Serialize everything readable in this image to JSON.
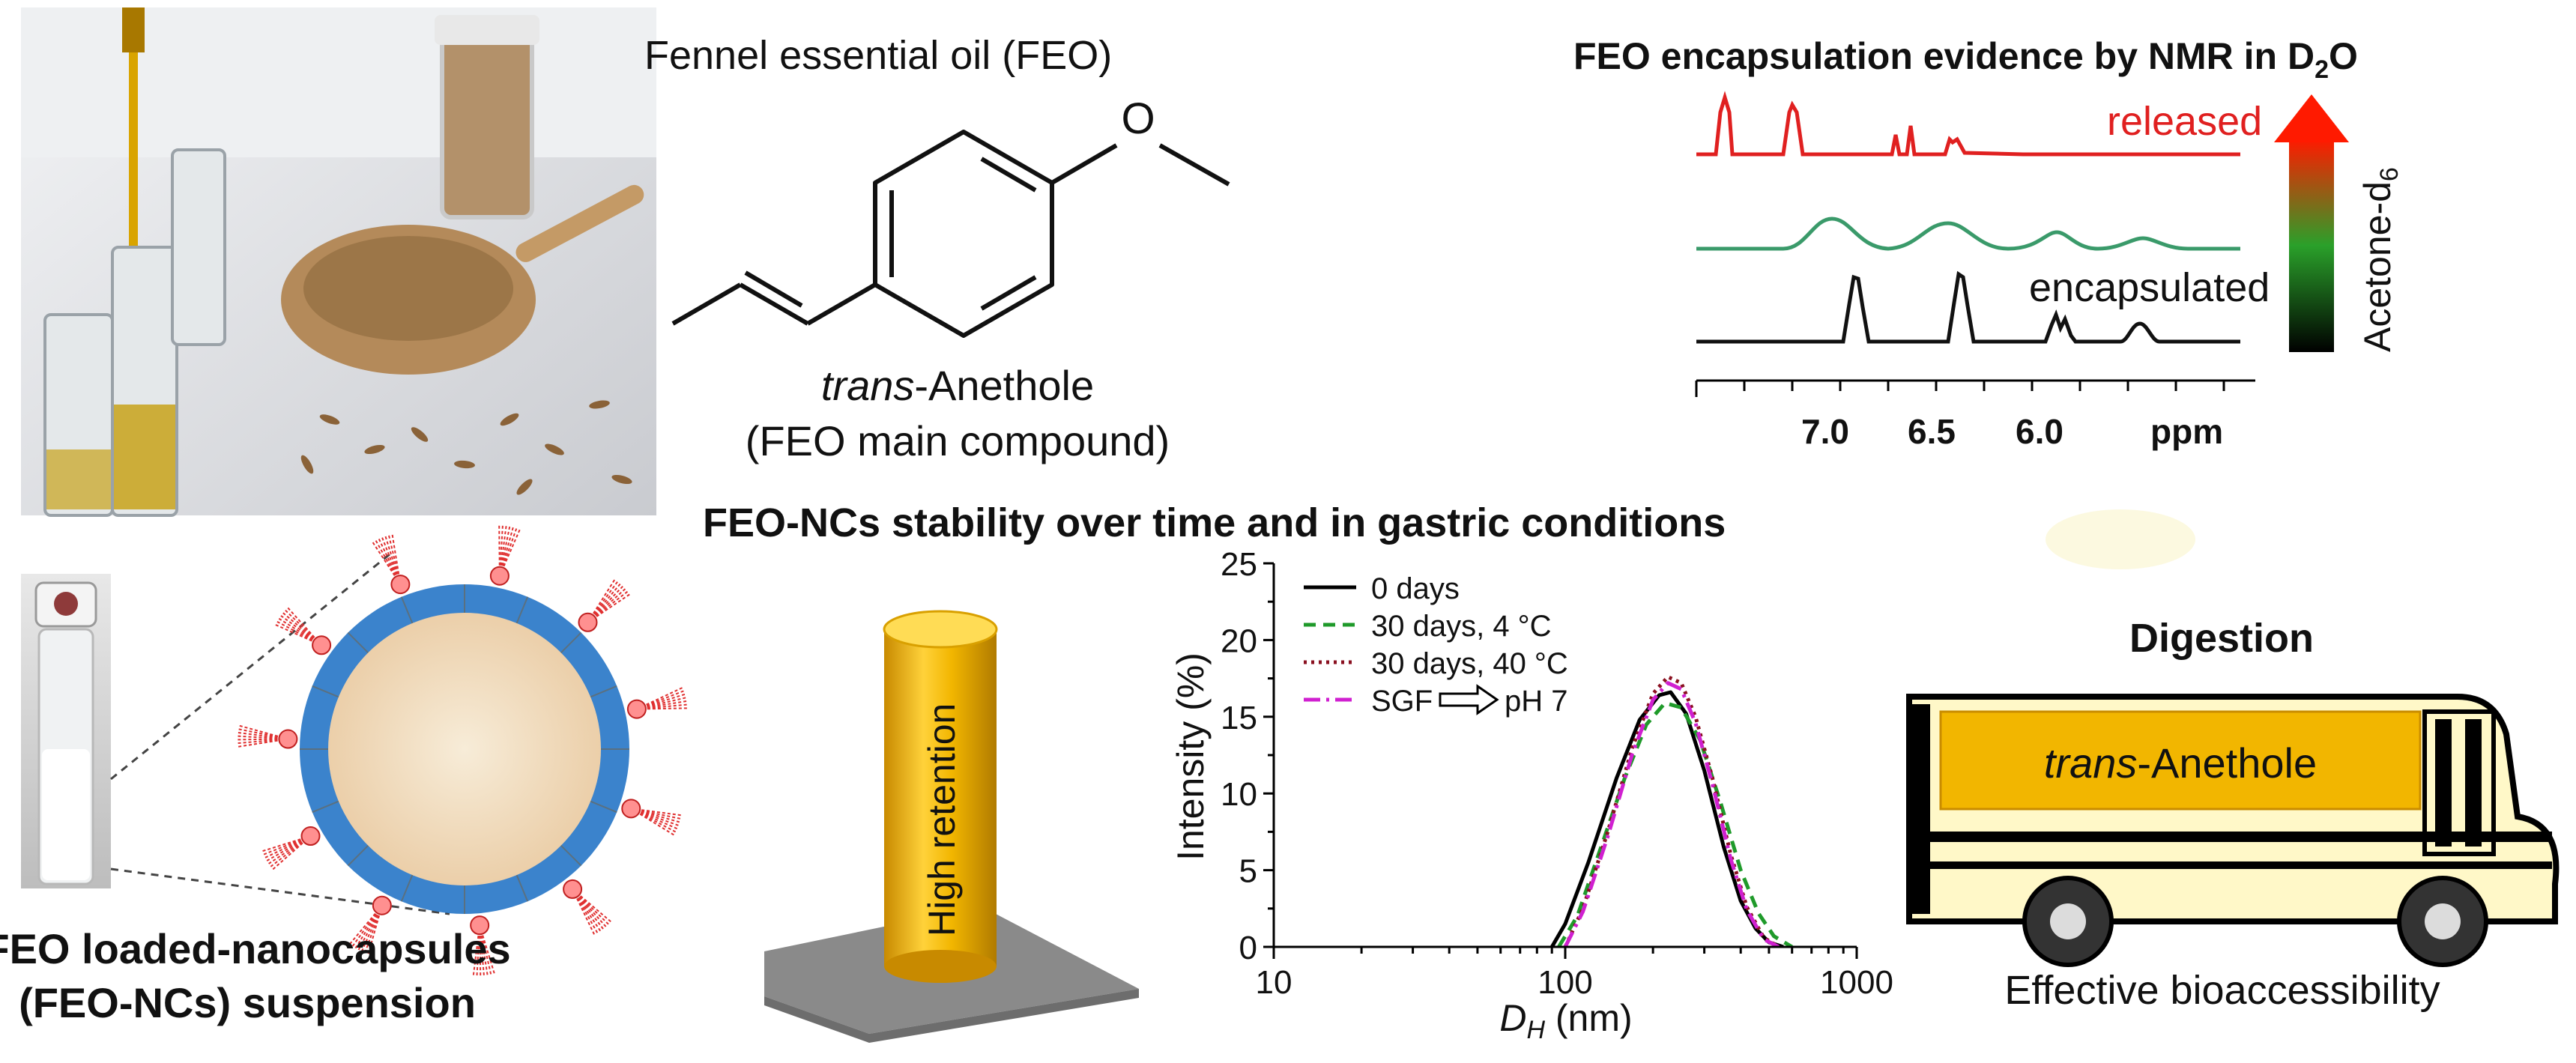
{
  "structure": {
    "fennel_title": "Fennel essential oil (FEO)",
    "name_prefix": "trans",
    "name_suffix": "-Anethole",
    "main_compound": "(FEO main compound)",
    "methoxy_O": "O"
  },
  "nmr": {
    "title": "FEO encapsulation evidence by NMR in D",
    "title_sub": "2",
    "title_end": "O",
    "released_label": "released",
    "encapsulated_label": "encapsulated",
    "gradient_label": "Acetone-d",
    "gradient_sub": "6",
    "x_ticks": [
      "7.0",
      "6.5",
      "6.0"
    ],
    "x_unit": "ppm",
    "colors": {
      "released": "#e02020",
      "intermediate": "#3a9a6a",
      "encapsulated": "#111111"
    }
  },
  "suspension": {
    "label_line1": "FEO loaded-nanocapsules",
    "label_line2": "(FEO-NCs) suspension"
  },
  "stability": {
    "title": "FEO-NCs stability over time and in gastric conditions",
    "cylinder_label": "High retention"
  },
  "digestion": {
    "title": "Digestion",
    "bus_prefix": "trans",
    "bus_suffix": "-Anethole",
    "caption": "Effective bioaccessibility"
  },
  "chart_data": {
    "type": "line",
    "xlabel": "D",
    "xlabel_sub": "H",
    "xlabel_unit": " (nm)",
    "ylabel": "Intensity (%)",
    "x_scale": "log",
    "xlim": [
      10,
      1000
    ],
    "ylim": [
      0,
      25
    ],
    "x_ticks": [
      "10",
      "100",
      "1000"
    ],
    "y_ticks": [
      "0",
      "5",
      "10",
      "15",
      "20",
      "25"
    ],
    "legend_position": "top-left",
    "series": [
      {
        "name": "0 days",
        "style": "solid",
        "color": "#000000",
        "x": [
          90,
          100,
          120,
          150,
          180,
          210,
          230,
          260,
          300,
          350,
          400,
          450,
          500,
          560
        ],
        "y": [
          0,
          1.5,
          5.5,
          11,
          14.8,
          16.4,
          16.6,
          15.2,
          11.5,
          6.5,
          3,
          1.2,
          0.3,
          0
        ]
      },
      {
        "name": "30 days, 4 °C",
        "style": "dashed",
        "color": "#1f9a2a",
        "x": [
          95,
          110,
          130,
          160,
          190,
          220,
          250,
          290,
          340,
          400,
          460,
          520,
          600
        ],
        "y": [
          0,
          2,
          6,
          11,
          14.5,
          15.9,
          15.6,
          13.5,
          9.5,
          5,
          2.2,
          0.7,
          0
        ]
      },
      {
        "name": "30 days, 40 °C",
        "style": "dotted",
        "color": "#8a1020",
        "x": [
          100,
          115,
          140,
          170,
          200,
          225,
          250,
          280,
          320,
          370,
          420,
          480,
          540
        ],
        "y": [
          0,
          2.5,
          7.5,
          13,
          16.5,
          17.6,
          17.2,
          15,
          11,
          6,
          2.6,
          0.6,
          0
        ]
      },
      {
        "name": "SGF",
        "name_suffix": "pH 7",
        "style": "dashdot",
        "color": "#d020d0",
        "x": [
          100,
          115,
          140,
          170,
          200,
          225,
          250,
          280,
          320,
          370,
          420,
          480,
          540
        ],
        "y": [
          0,
          2.3,
          7.2,
          12.6,
          16.1,
          17.2,
          16.8,
          14.6,
          10.6,
          5.7,
          2.4,
          0.5,
          0
        ]
      }
    ]
  }
}
